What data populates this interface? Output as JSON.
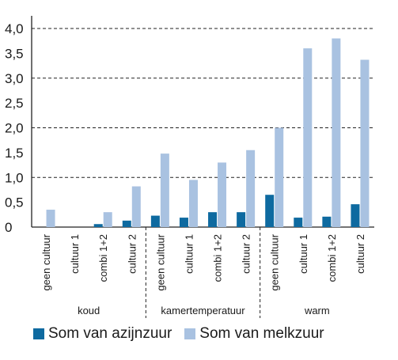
{
  "chart_data": {
    "type": "bar",
    "y_ticks": [
      "0",
      "0,5",
      "1,0",
      "1,5",
      "2,0",
      "2,5",
      "3,0",
      "3,5",
      "4,0"
    ],
    "ylim": [
      0,
      4.0
    ],
    "grid": "dashed at 1,0 intervals",
    "groups": [
      {
        "label": "koud",
        "categories": [
          "geen cultuur",
          "cultuur 1",
          "combi 1+2",
          "cultuur 2"
        ]
      },
      {
        "label": "kamertemperatuur",
        "categories": [
          "geen cultuur",
          "cultuur 1",
          "combi 1+2",
          "cultuur 2"
        ]
      },
      {
        "label": "warm",
        "categories": [
          "geen cultuur",
          "cultuur 1",
          "combi 1+2",
          "cultuur 2"
        ]
      }
    ],
    "series": [
      {
        "name": "Som van azijnzuur",
        "color": "#0e6aa0",
        "values": [
          0,
          0,
          0.06,
          0.13,
          0.23,
          0.19,
          0.3,
          0.3,
          0.65,
          0.19,
          0.21,
          0.46
        ]
      },
      {
        "name": "Som van melkzuur",
        "color": "#a9c2e1",
        "values": [
          0.35,
          0,
          0.3,
          0.82,
          1.48,
          0.95,
          1.3,
          1.55,
          2.0,
          3.6,
          3.8,
          3.37
        ]
      }
    ],
    "legend_position": "bottom"
  }
}
